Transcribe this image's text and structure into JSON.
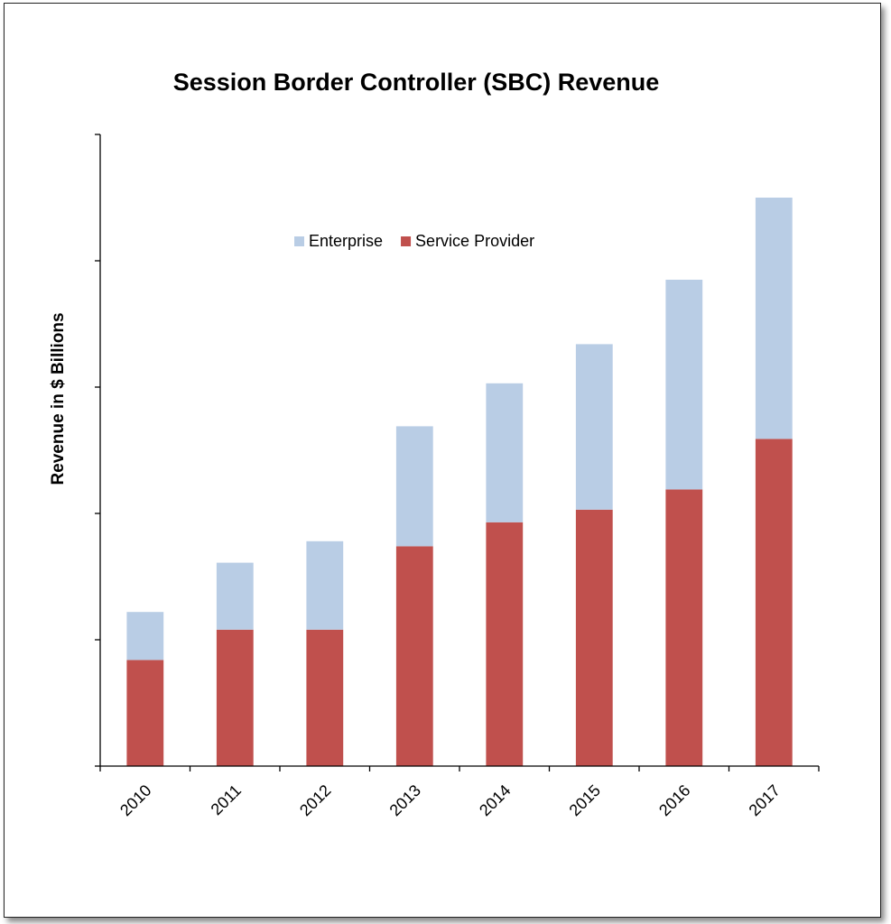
{
  "chart_data": {
    "type": "bar",
    "stacked": true,
    "title": "Session Border Controller (SBC) Revenue",
    "xlabel": "",
    "ylabel": "Revenue in $ Billions",
    "categories": [
      "2010",
      "2011",
      "2012",
      "2013",
      "2014",
      "2015",
      "2016",
      "2017"
    ],
    "series": [
      {
        "name": "Service Provider",
        "color": "#c0504d",
        "values": [
          0.84,
          1.08,
          1.08,
          1.74,
          1.93,
          2.03,
          2.19,
          2.59
        ]
      },
      {
        "name": "Enterprise",
        "color": "#b9cde5",
        "values": [
          0.38,
          0.53,
          0.7,
          0.95,
          1.1,
          1.31,
          1.66,
          1.91
        ]
      }
    ],
    "ylim": [
      0,
      5
    ],
    "ytick_values": [
      0,
      1,
      2,
      3,
      4,
      5
    ],
    "ytick_labels_shown": false,
    "grid": false,
    "legend": {
      "position": "top-center",
      "order": [
        "Enterprise",
        "Service Provider"
      ]
    }
  }
}
